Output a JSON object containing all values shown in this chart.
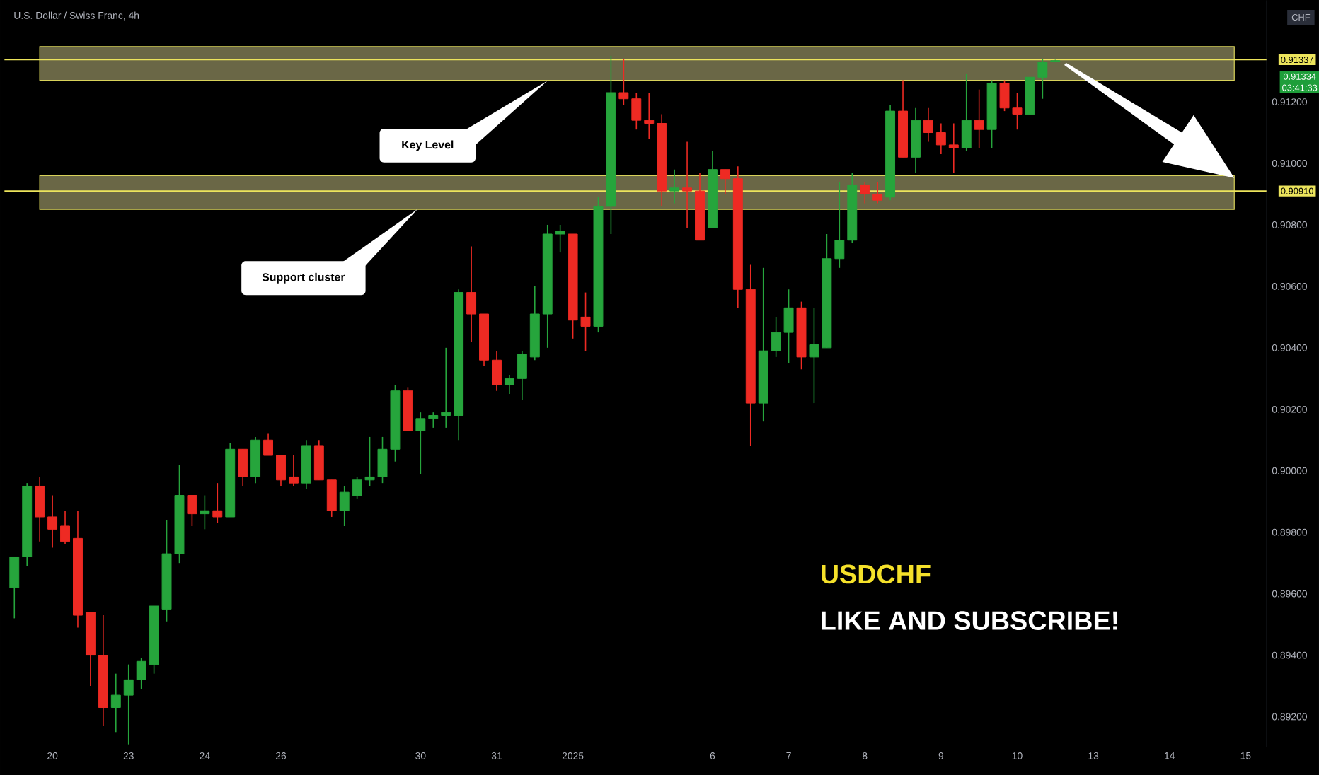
{
  "chart_data": {
    "type": "candlestick",
    "title": "U.S. Dollar / Swiss Franc, 4h",
    "categories": [
      null,
      null,
      null,
      "20",
      null,
      null,
      null,
      null,
      null,
      "23",
      null,
      null,
      null,
      null,
      null,
      "24",
      null,
      null,
      null,
      null,
      null,
      "26",
      null,
      null,
      null,
      null,
      null,
      null,
      null,
      null,
      null,
      null,
      "30",
      null,
      null,
      null,
      null,
      null,
      "31",
      null,
      null,
      null,
      null,
      null,
      "2025",
      null,
      null,
      null,
      null,
      null,
      null,
      null,
      null,
      null,
      null,
      "6",
      null,
      null,
      null,
      null,
      null,
      "7",
      null,
      null,
      null,
      null,
      null,
      "8",
      null,
      null,
      null,
      null,
      null,
      "9",
      null,
      null,
      null,
      null,
      null,
      "10",
      null,
      null,
      null,
      null,
      null,
      "13",
      null,
      null,
      null,
      null,
      null,
      "14",
      null,
      null,
      null,
      null,
      null,
      "15"
    ],
    "ohlc": [
      [
        0.8962,
        0.8972,
        0.8952,
        0.8972
      ],
      [
        0.8972,
        0.8996,
        0.8969,
        0.8995
      ],
      [
        0.8995,
        0.8998,
        0.8977,
        0.8985
      ],
      [
        0.8985,
        0.8992,
        0.8975,
        0.8981
      ],
      [
        0.8982,
        0.8987,
        0.8976,
        0.8977
      ],
      [
        0.8978,
        0.8987,
        0.8949,
        0.8953
      ],
      [
        0.8954,
        0.8954,
        0.893,
        0.894
      ],
      [
        0.894,
        0.8953,
        0.8917,
        0.8923
      ],
      [
        0.8923,
        0.8934,
        0.8915,
        0.8927
      ],
      [
        0.8927,
        0.8937,
        0.8911,
        0.8932
      ],
      [
        0.8932,
        0.8939,
        0.8929,
        0.8938
      ],
      [
        0.8937,
        0.8956,
        0.8934,
        0.8956
      ],
      [
        0.8955,
        0.8984,
        0.8951,
        0.8973
      ],
      [
        0.8973,
        0.9002,
        0.897,
        0.8992
      ],
      [
        0.8992,
        0.8992,
        0.8982,
        0.8986
      ],
      [
        0.8986,
        0.8992,
        0.8981,
        0.8987
      ],
      [
        0.8987,
        0.8996,
        0.8983,
        0.8985
      ],
      [
        0.8985,
        0.9009,
        0.8985,
        0.9007
      ],
      [
        0.9007,
        0.9007,
        0.8995,
        0.8998
      ],
      [
        0.8998,
        0.9011,
        0.8996,
        0.901
      ],
      [
        0.901,
        0.9012,
        0.9005,
        0.9005
      ],
      [
        0.9005,
        0.9005,
        0.8995,
        0.8997
      ],
      [
        0.8998,
        0.9005,
        0.8995,
        0.8996
      ],
      [
        0.8996,
        0.901,
        0.8994,
        0.9008
      ],
      [
        0.9008,
        0.901,
        0.8997,
        0.8997
      ],
      [
        0.8997,
        0.8997,
        0.8985,
        0.8987
      ],
      [
        0.8987,
        0.8995,
        0.8982,
        0.8993
      ],
      [
        0.8992,
        0.8998,
        0.8991,
        0.8997
      ],
      [
        0.8997,
        0.9011,
        0.8995,
        0.8998
      ],
      [
        0.8998,
        0.9011,
        0.8996,
        0.9007
      ],
      [
        0.9007,
        0.9028,
        0.9003,
        0.9026
      ],
      [
        0.9026,
        0.9027,
        0.9013,
        0.9013
      ],
      [
        0.9013,
        0.9019,
        0.8999,
        0.9017
      ],
      [
        0.9017,
        0.9019,
        0.9014,
        0.9018
      ],
      [
        0.9018,
        0.904,
        0.9014,
        0.9019
      ],
      [
        0.9018,
        0.9059,
        0.901,
        0.9058
      ],
      [
        0.9058,
        0.9073,
        0.9042,
        0.9051
      ],
      [
        0.9051,
        0.9051,
        0.9034,
        0.9036
      ],
      [
        0.9036,
        0.9039,
        0.9026,
        0.9028
      ],
      [
        0.9028,
        0.9031,
        0.9025,
        0.903
      ],
      [
        0.903,
        0.9039,
        0.9023,
        0.9038
      ],
      [
        0.9037,
        0.906,
        0.9036,
        0.9051
      ],
      [
        0.9051,
        0.908,
        0.904,
        0.9077
      ],
      [
        0.9077,
        0.908,
        0.9071,
        0.9078
      ],
      [
        0.9077,
        0.9077,
        0.9043,
        0.9049
      ],
      [
        0.905,
        0.9058,
        0.9039,
        0.9047
      ],
      [
        0.9047,
        0.9089,
        0.9045,
        0.9086
      ],
      [
        0.9086,
        0.9135,
        0.9077,
        0.9123
      ],
      [
        0.9123,
        0.9134,
        0.9119,
        0.9121
      ],
      [
        0.9121,
        0.9123,
        0.9111,
        0.9114
      ],
      [
        0.9114,
        0.9123,
        0.9108,
        0.9113
      ],
      [
        0.9113,
        0.9116,
        0.9086,
        0.9091
      ],
      [
        0.9091,
        0.9098,
        0.9087,
        0.9092
      ],
      [
        0.9092,
        0.9107,
        0.9079,
        0.9091
      ],
      [
        0.9091,
        0.9097,
        0.9075,
        0.9075
      ],
      [
        0.9079,
        0.9104,
        0.9079,
        0.9098
      ],
      [
        0.9098,
        0.9098,
        0.909,
        0.9095
      ],
      [
        0.9095,
        0.9099,
        0.9053,
        0.9059
      ],
      [
        0.9059,
        0.9067,
        0.9008,
        0.9022
      ],
      [
        0.9022,
        0.9066,
        0.9016,
        0.9039
      ],
      [
        0.9039,
        0.905,
        0.9037,
        0.9045
      ],
      [
        0.9045,
        0.9059,
        0.9035,
        0.9053
      ],
      [
        0.9053,
        0.9055,
        0.9033,
        0.9037
      ],
      [
        0.9037,
        0.9053,
        0.9022,
        0.9041
      ],
      [
        0.904,
        0.9077,
        0.904,
        0.9069
      ],
      [
        0.9069,
        0.9094,
        0.9066,
        0.9075
      ],
      [
        0.9075,
        0.9097,
        0.9074,
        0.9093
      ],
      [
        0.9093,
        0.9094,
        0.9087,
        0.909
      ],
      [
        0.909,
        0.9094,
        0.9087,
        0.9088
      ],
      [
        0.9089,
        0.9119,
        0.9088,
        0.9117
      ],
      [
        0.9117,
        0.9127,
        0.9102,
        0.9102
      ],
      [
        0.9102,
        0.9118,
        0.9097,
        0.9114
      ],
      [
        0.9114,
        0.9118,
        0.9107,
        0.911
      ],
      [
        0.911,
        0.9113,
        0.9103,
        0.9106
      ],
      [
        0.9106,
        0.9113,
        0.9097,
        0.9105
      ],
      [
        0.9105,
        0.9129,
        0.9104,
        0.9114
      ],
      [
        0.9114,
        0.9124,
        0.9105,
        0.9111
      ],
      [
        0.9111,
        0.9127,
        0.9105,
        0.9126
      ],
      [
        0.9126,
        0.9127,
        0.9117,
        0.9118
      ],
      [
        0.9118,
        0.9123,
        0.9111,
        0.9116
      ],
      [
        0.9116,
        0.9128,
        0.9116,
        0.9128
      ],
      [
        0.9128,
        0.9134,
        0.9121,
        0.9133
      ],
      [
        0.9133,
        0.91337,
        0.9133,
        0.91334
      ],
      null,
      null,
      null,
      null,
      null,
      null,
      null,
      null,
      null,
      null,
      null,
      null,
      null,
      null,
      null
    ],
    "colors": [
      "#26a53c",
      "#26a53c",
      "#ee2a23",
      "#ee2a23",
      "#ee2a23",
      "#ee2a23",
      "#ee2a23",
      "#ee2a23",
      "#26a53c",
      "#26a53c",
      "#26a53c",
      "#26a53c",
      "#26a53c",
      "#26a53c",
      "#ee2a23",
      "#26a53c",
      "#ee2a23",
      "#26a53c",
      "#ee2a23",
      "#26a53c",
      "#ee2a23",
      "#ee2a23",
      "#ee2a23",
      "#26a53c",
      "#ee2a23",
      "#ee2a23",
      "#26a53c",
      "#26a53c",
      "#26a53c",
      "#26a53c",
      "#26a53c",
      "#ee2a23",
      "#26a53c",
      "#26a53c",
      "#26a53c",
      "#26a53c",
      "#ee2a23",
      "#ee2a23",
      "#ee2a23",
      "#26a53c",
      "#26a53c",
      "#26a53c",
      "#26a53c",
      "#26a53c",
      "#ee2a23",
      "#ee2a23",
      "#26a53c",
      "#26a53c",
      "#ee2a23",
      "#ee2a23",
      "#ee2a23",
      "#ee2a23",
      "#26a53c",
      "#ee2a23",
      "#ee2a23",
      "#26a53c",
      "#ee2a23",
      "#ee2a23",
      "#ee2a23",
      "#26a53c",
      "#26a53c",
      "#26a53c",
      "#ee2a23",
      "#26a53c",
      "#26a53c",
      "#26a53c",
      "#26a53c",
      "#ee2a23",
      "#ee2a23",
      "#26a53c",
      "#ee2a23",
      "#26a53c",
      "#ee2a23",
      "#ee2a23",
      "#ee2a23",
      "#26a53c",
      "#ee2a23",
      "#26a53c",
      "#ee2a23",
      "#ee2a23",
      "#26a53c",
      "#26a53c",
      "#26a53c",
      null,
      null,
      null,
      null,
      null,
      null,
      null,
      null,
      null,
      null,
      null,
      null,
      null,
      null,
      null
    ],
    "ylim": [
      0.891,
      0.9153
    ],
    "yticks": [
      {
        "value": 0.892,
        "label": "0.89200"
      },
      {
        "value": 0.894,
        "label": "0.89400"
      },
      {
        "value": 0.896,
        "label": "0.89600"
      },
      {
        "value": 0.898,
        "label": "0.89800"
      },
      {
        "value": 0.9,
        "label": "0.90000"
      },
      {
        "value": 0.902,
        "label": "0.90200"
      },
      {
        "value": 0.904,
        "label": "0.90400"
      },
      {
        "value": 0.906,
        "label": "0.90600"
      },
      {
        "value": 0.908,
        "label": "0.90800"
      },
      {
        "value": 0.91,
        "label": "0.91000"
      },
      {
        "value": 0.912,
        "label": "0.91200"
      }
    ],
    "bands": [
      {
        "axis": "y",
        "from": 0.9127,
        "to": 0.9138,
        "color": "#6a6746"
      },
      {
        "axis": "y",
        "from": 0.9085,
        "to": 0.9096,
        "color": "#6a6746"
      }
    ],
    "ref_lines": [
      {
        "axis": "y",
        "value": 0.91337,
        "label": "0.91337",
        "color": "#ece45c"
      },
      {
        "axis": "y",
        "value": 0.9091,
        "label": "0.90910",
        "color": "#ece45c"
      }
    ],
    "annotations": [
      "Key Level",
      "Support cluster",
      "USDCHF",
      "LIKE AND SUBSCRIBE!",
      "CHF",
      "0.91334",
      "03:41:33"
    ]
  }
}
